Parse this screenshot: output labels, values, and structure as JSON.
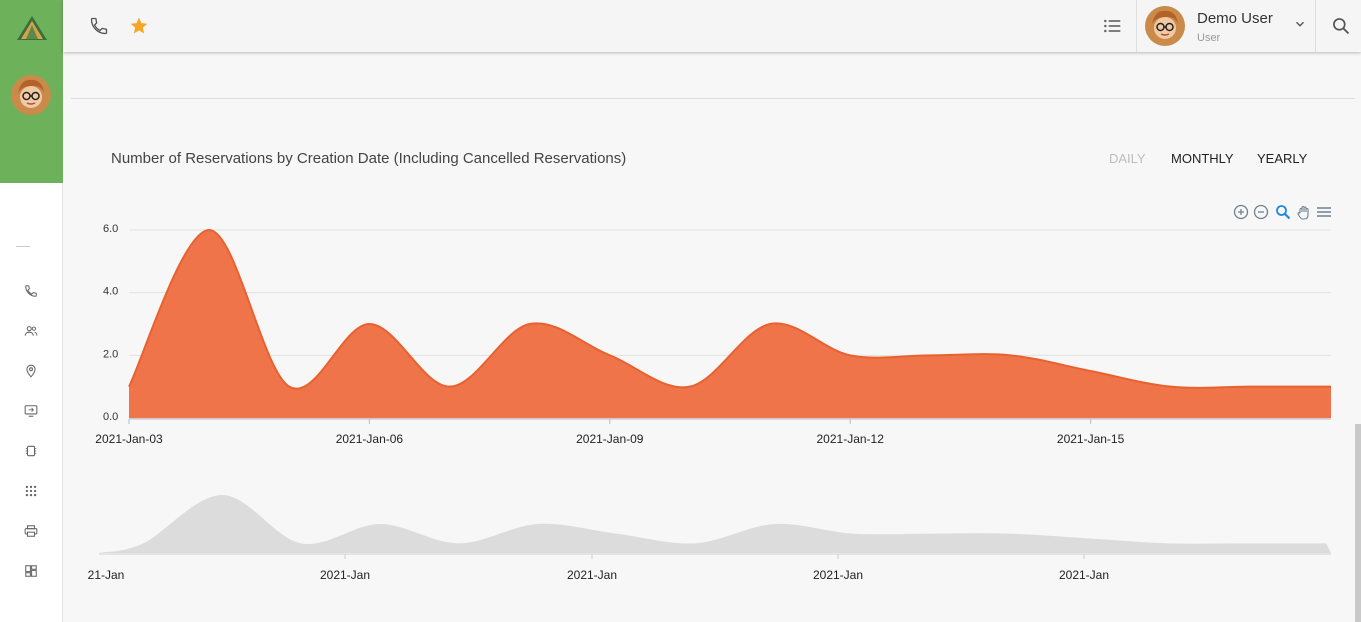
{
  "topbar": {
    "user_name": "Demo User",
    "user_role": "User",
    "icons": [
      "phone-icon",
      "star-icon",
      "list-icon",
      "chevron-down-icon",
      "search-icon"
    ]
  },
  "sidebar": {
    "icons": [
      "phone-icon",
      "people-icon",
      "location-icon",
      "monitor-icon",
      "chip-icon",
      "grid-icon",
      "printer-icon",
      "dashboard-icon"
    ]
  },
  "chart_header": {
    "title": "Number of Reservations by Creation Date (Including Cancelled Reservations)",
    "tabs": [
      {
        "label": "DAILY",
        "active": false
      },
      {
        "label": "MONTHLY",
        "active": true
      },
      {
        "label": "YEARLY",
        "active": true
      }
    ]
  },
  "toolbar": [
    "zoom-in-icon",
    "zoom-out-icon",
    "magnifier-icon",
    "hand-pan-icon",
    "menu-icon"
  ],
  "colors": {
    "accent_green": "#6eb15b",
    "series_fill": "#f0744a",
    "series_stroke": "#e8612f",
    "navigator_fill": "#dcdcdc",
    "star": "#f5a623",
    "toolbar_active": "#1e88e5"
  },
  "chart_data": {
    "type": "area",
    "smooth": true,
    "x": [
      "2021-Jan-03",
      "2021-Jan-04",
      "2021-Jan-05",
      "2021-Jan-06",
      "2021-Jan-07",
      "2021-Jan-08",
      "2021-Jan-09",
      "2021-Jan-10",
      "2021-Jan-11",
      "2021-Jan-12",
      "2021-Jan-13",
      "2021-Jan-14",
      "2021-Jan-15",
      "2021-Jan-16",
      "2021-Jan-17",
      "2021-Jan-18"
    ],
    "series": [
      {
        "values": [
          1,
          6,
          1,
          3,
          1,
          3,
          2,
          1,
          3,
          2,
          2,
          2,
          1.5,
          1,
          1,
          1
        ]
      }
    ],
    "xticks": [
      "2021-Jan-03",
      "2021-Jan-06",
      "2021-Jan-09",
      "2021-Jan-12",
      "2021-Jan-15"
    ],
    "yticks": [
      "0.0",
      "2.0",
      "4.0",
      "6.0"
    ],
    "ylim": [
      0,
      6
    ],
    "grid": true,
    "navigator": {
      "xticks": [
        "21-Jan",
        "2021-Jan",
        "2021-Jan",
        "2021-Jan",
        "2021-Jan"
      ]
    }
  }
}
